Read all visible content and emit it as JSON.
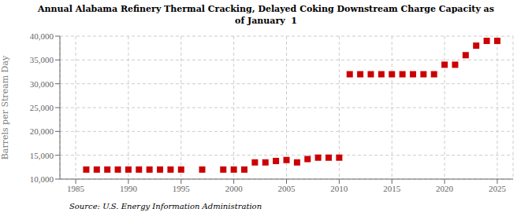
{
  "chart_data": {
    "type": "scatter",
    "title": "Annual Alabama Refinery Thermal Cracking, Delayed Coking Downstream Charge Capacity as\nof January  1",
    "ylabel": "Barrels per Stream Day",
    "source": "Source: U.S. Energy Information Administration",
    "x": [
      1986,
      1987,
      1988,
      1989,
      1990,
      1991,
      1992,
      1993,
      1994,
      1995,
      1997,
      1999,
      2000,
      2001,
      2002,
      2003,
      2004,
      2005,
      2006,
      2007,
      2008,
      2009,
      2010,
      2011,
      2012,
      2013,
      2014,
      2015,
      2016,
      2017,
      2018,
      2019,
      2020,
      2021,
      2022,
      2023,
      2024,
      2025
    ],
    "values": [
      12000,
      12000,
      12000,
      12000,
      12000,
      12000,
      12000,
      12000,
      12000,
      12000,
      12000,
      12000,
      12000,
      12000,
      13500,
      13500,
      13800,
      14000,
      13500,
      14200,
      14500,
      14500,
      14500,
      32000,
      32000,
      32000,
      32000,
      32000,
      32000,
      32000,
      32000,
      32000,
      34000,
      34000,
      36000,
      38000,
      39000,
      39000
    ],
    "color": "#cc0000",
    "marker": "square",
    "grid": true,
    "xlim": [
      1983.5,
      2026.5
    ],
    "ylim": [
      10000,
      40000
    ],
    "xticks": [
      1985,
      1990,
      1995,
      2000,
      2005,
      2010,
      2015,
      2020,
      2025
    ],
    "yticks": [
      {
        "value": 10000,
        "label": "10,000"
      },
      {
        "value": 15000,
        "label": "15,000"
      },
      {
        "value": 20000,
        "label": "20,000"
      },
      {
        "value": 25000,
        "label": "25,000"
      },
      {
        "value": 30000,
        "label": "30,000"
      },
      {
        "value": 35000,
        "label": "35,000"
      },
      {
        "value": 40000,
        "label": "40,000"
      }
    ]
  }
}
